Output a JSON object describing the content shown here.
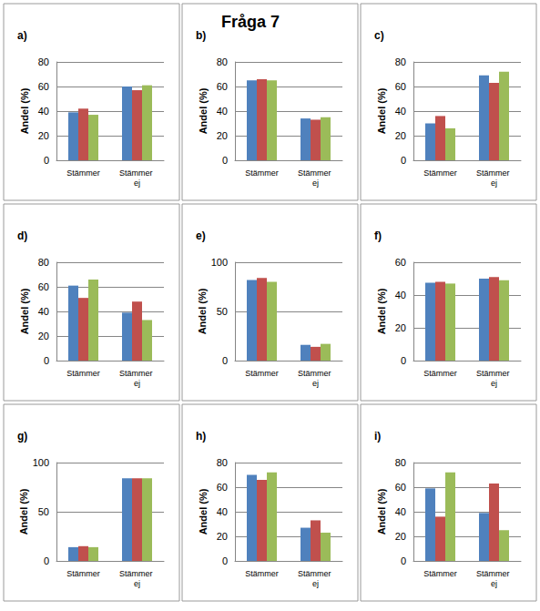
{
  "title": "Fråga 7",
  "chart_data": [
    {
      "type": "bar",
      "title": "a)",
      "ylabel": "Andel (%)",
      "categories": [
        "Stämmer",
        "Stämmer ej"
      ],
      "series": [
        {
          "color": "#4F81BD",
          "values": [
            39,
            60
          ]
        },
        {
          "color": "#C0504D",
          "values": [
            42,
            57
          ]
        },
        {
          "color": "#9BBB59",
          "values": [
            37,
            61
          ]
        }
      ],
      "ylim": [
        0,
        80
      ],
      "yticks": [
        0,
        20,
        40,
        60,
        80
      ],
      "grid": true
    },
    {
      "type": "bar",
      "title": "b)",
      "ylabel": "Andel (%)",
      "categories": [
        "Stämmer",
        "Stämmer ej"
      ],
      "series": [
        {
          "color": "#4F81BD",
          "values": [
            65,
            34
          ]
        },
        {
          "color": "#C0504D",
          "values": [
            66,
            33
          ]
        },
        {
          "color": "#9BBB59",
          "values": [
            65,
            35
          ]
        }
      ],
      "ylim": [
        0,
        80
      ],
      "yticks": [
        0,
        20,
        40,
        60,
        80
      ],
      "grid": true
    },
    {
      "type": "bar",
      "title": "c)",
      "ylabel": "Andel (%)",
      "categories": [
        "Stämmer",
        "Stämmer ej"
      ],
      "series": [
        {
          "color": "#4F81BD",
          "values": [
            30,
            69
          ]
        },
        {
          "color": "#C0504D",
          "values": [
            36,
            63
          ]
        },
        {
          "color": "#9BBB59",
          "values": [
            26,
            72
          ]
        }
      ],
      "ylim": [
        0,
        80
      ],
      "yticks": [
        0,
        20,
        40,
        60,
        80
      ],
      "grid": true
    },
    {
      "type": "bar",
      "title": "d)",
      "ylabel": "Andel (%)",
      "categories": [
        "Stämmer",
        "Stämmer ej"
      ],
      "series": [
        {
          "color": "#4F81BD",
          "values": [
            61,
            39
          ]
        },
        {
          "color": "#C0504D",
          "values": [
            51,
            48
          ]
        },
        {
          "color": "#9BBB59",
          "values": [
            66,
            33
          ]
        }
      ],
      "ylim": [
        0,
        80
      ],
      "yticks": [
        0,
        20,
        40,
        60,
        80
      ],
      "grid": true
    },
    {
      "type": "bar",
      "title": "e)",
      "ylabel": "Andel (%)",
      "categories": [
        "Stämmer",
        "Stämmer ej"
      ],
      "series": [
        {
          "color": "#4F81BD",
          "values": [
            82,
            16
          ]
        },
        {
          "color": "#C0504D",
          "values": [
            84,
            14
          ]
        },
        {
          "color": "#9BBB59",
          "values": [
            80,
            17
          ]
        }
      ],
      "ylim": [
        0,
        100
      ],
      "yticks": [
        0,
        50,
        100
      ],
      "grid": true
    },
    {
      "type": "bar",
      "title": "f)",
      "ylabel": "Andel (%)",
      "categories": [
        "Stämmer",
        "Stämmer ej"
      ],
      "series": [
        {
          "color": "#4F81BD",
          "values": [
            47.5,
            50
          ]
        },
        {
          "color": "#C0504D",
          "values": [
            48,
            51
          ]
        },
        {
          "color": "#9BBB59",
          "values": [
            47,
            49
          ]
        }
      ],
      "ylim": [
        0,
        60
      ],
      "yticks": [
        0,
        20,
        40,
        60
      ],
      "grid": true
    },
    {
      "type": "bar",
      "title": "g)",
      "ylabel": "Andel (%)",
      "categories": [
        "Stämmer",
        "Stämmer ej"
      ],
      "series": [
        {
          "color": "#4F81BD",
          "values": [
            14,
            84
          ]
        },
        {
          "color": "#C0504D",
          "values": [
            15,
            84
          ]
        },
        {
          "color": "#9BBB59",
          "values": [
            14,
            84
          ]
        }
      ],
      "ylim": [
        0,
        100
      ],
      "yticks": [
        0,
        50,
        100
      ],
      "grid": true
    },
    {
      "type": "bar",
      "title": "h)",
      "ylabel": "Andel (%)",
      "categories": [
        "Stämmer",
        "Stämmer ej"
      ],
      "series": [
        {
          "color": "#4F81BD",
          "values": [
            70,
            27
          ]
        },
        {
          "color": "#C0504D",
          "values": [
            66,
            33
          ]
        },
        {
          "color": "#9BBB59",
          "values": [
            72,
            23
          ]
        }
      ],
      "ylim": [
        0,
        80
      ],
      "yticks": [
        0,
        20,
        40,
        60,
        80
      ],
      "grid": true
    },
    {
      "type": "bar",
      "title": "i)",
      "ylabel": "Andel (%)",
      "categories": [
        "Stämmer",
        "Stämmer ej"
      ],
      "series": [
        {
          "color": "#4F81BD",
          "values": [
            59,
            39
          ]
        },
        {
          "color": "#C0504D",
          "values": [
            36,
            63
          ]
        },
        {
          "color": "#9BBB59",
          "values": [
            72,
            25
          ]
        }
      ],
      "ylim": [
        0,
        80
      ],
      "yticks": [
        0,
        20,
        40,
        60,
        80
      ],
      "grid": true
    }
  ]
}
